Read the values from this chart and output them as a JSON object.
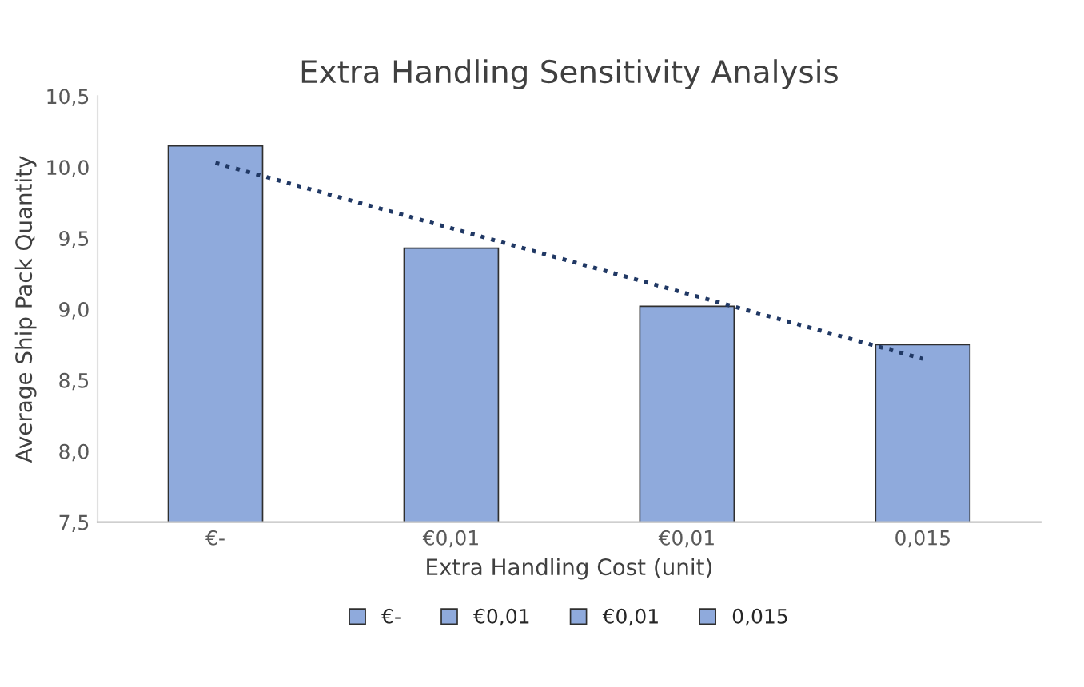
{
  "chart_data": {
    "type": "bar",
    "title": "Extra Handling Sensitivity Analysis",
    "xlabel": "Extra Handling Cost (unit)",
    "ylabel": "Average Ship Pack Quantity",
    "categories": [
      "€-",
      "€0,01",
      "€0,01",
      "0,015"
    ],
    "series": [
      {
        "name": "€-",
        "color": "#8faadc",
        "values": [
          10.15,
          null,
          null,
          null
        ]
      },
      {
        "name": "€0,01",
        "color": "#8faadc",
        "values": [
          null,
          9.43,
          null,
          null
        ]
      },
      {
        "name": "€0,01",
        "color": "#8faadc",
        "values": [
          null,
          null,
          9.02,
          null
        ]
      },
      {
        "name": "0,015",
        "color": "#8faadc",
        "values": [
          null,
          null,
          null,
          8.75
        ]
      },
      {
        "type": "line",
        "color": "#203864",
        "line_style": "dotted",
        "values": [
          10.03,
          9.57,
          9.11,
          8.65
        ]
      }
    ],
    "ylim": [
      7.5,
      10.5
    ],
    "yticks": [
      {
        "value": 7.5,
        "label": "7,5"
      },
      {
        "value": 8.0,
        "label": "8,0"
      },
      {
        "value": 8.5,
        "label": "8,5"
      },
      {
        "value": 9.0,
        "label": "9,0"
      },
      {
        "value": 9.5,
        "label": "9,5"
      },
      {
        "value": 10.0,
        "label": "10,0"
      },
      {
        "value": 10.5,
        "label": "10,5"
      }
    ],
    "grid": false,
    "legend": "bottom"
  }
}
